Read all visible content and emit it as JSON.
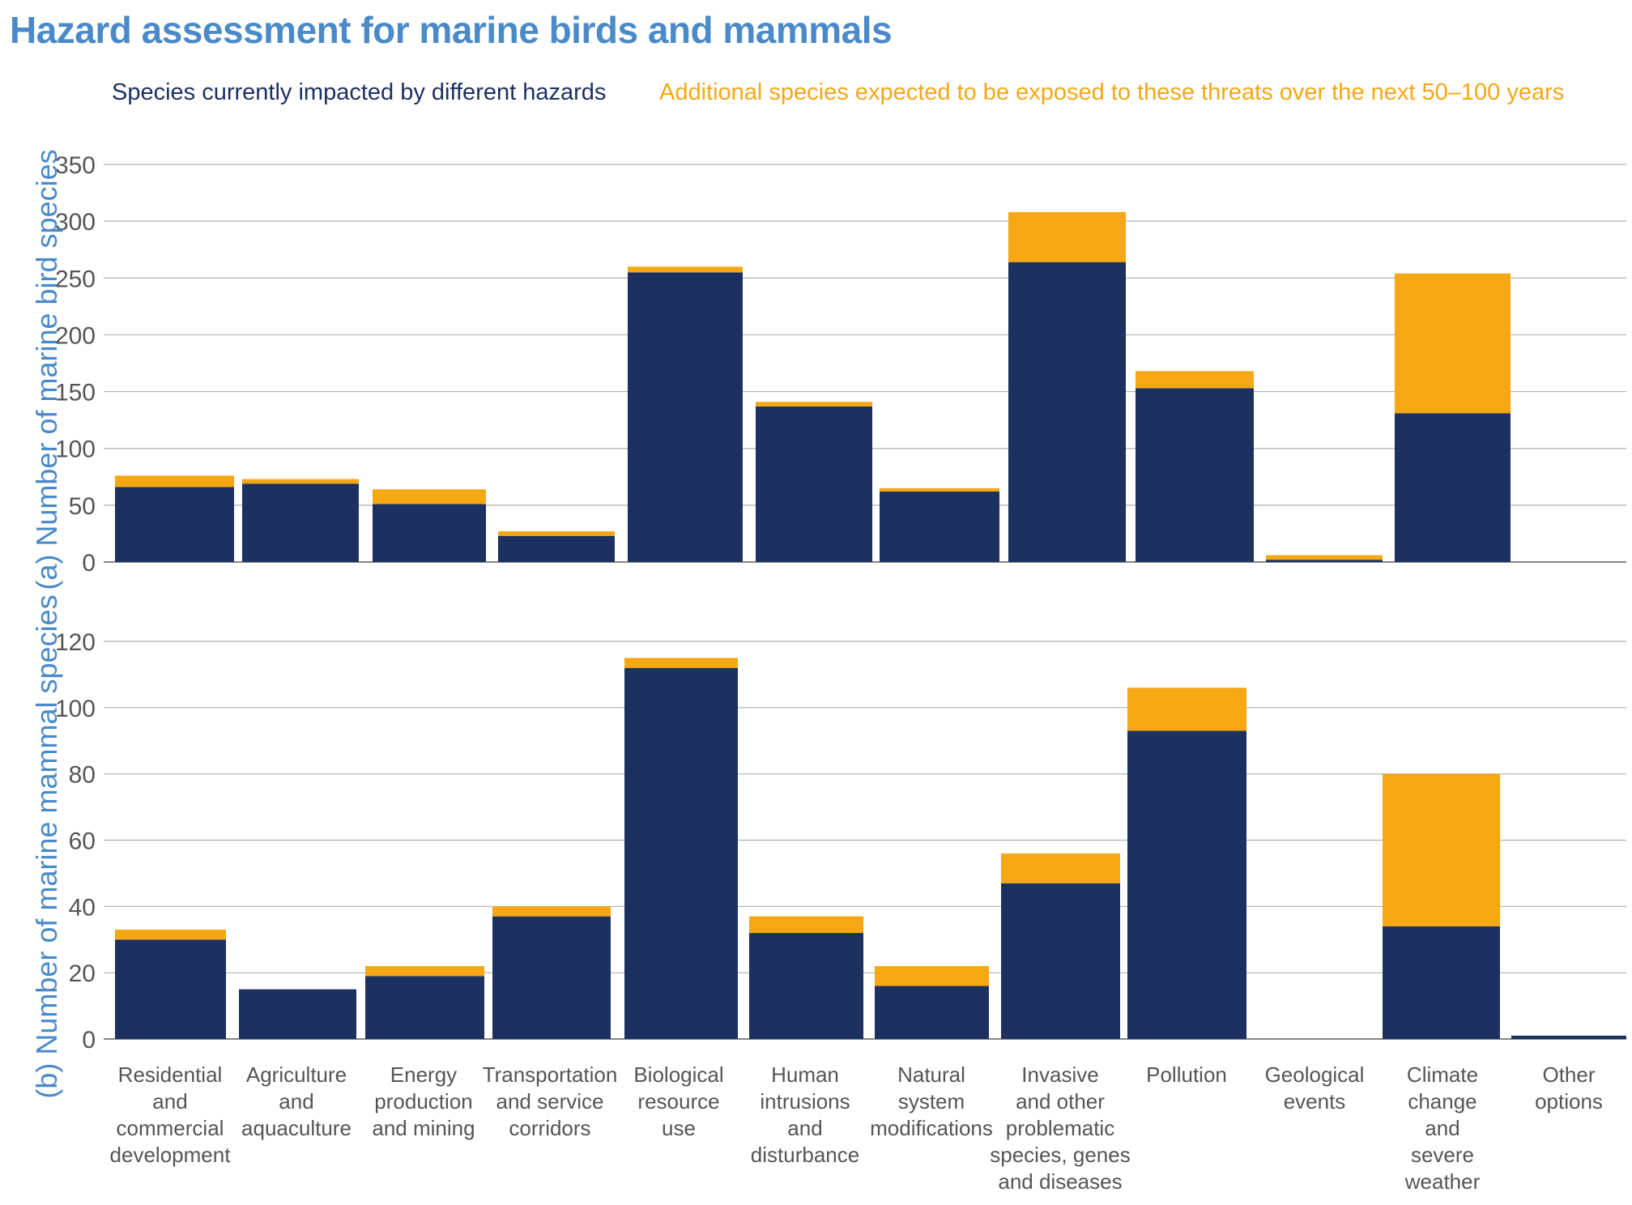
{
  "title": "Hazard assessment for marine birds and mammals",
  "legend": {
    "current": "Species currently impacted by different hazards",
    "additional": "Additional species expected to be exposed to these threats over the next 50–100 years"
  },
  "colors": {
    "current": "#1d3160",
    "additional": "#f5a714",
    "title": "#4a8ac9",
    "grid": "#b0b0b0",
    "axis_text": "#555555"
  },
  "chart_data": [
    {
      "type": "bar",
      "stacked": true,
      "ylabel": "(a) Number of marine bird species",
      "ylim": [
        0,
        350
      ],
      "yticks": [
        0,
        50,
        100,
        150,
        200,
        250,
        300,
        350
      ],
      "grid": true,
      "categories": [
        "Residential and commercial development",
        "Agriculture and aquaculture",
        "Energy production and mining",
        "Transportation and service corridors",
        "Biological resource use",
        "Human intrusions and disturbance",
        "Natural system modifications",
        "Invasive and other problematic species, genes and diseases",
        "Pollution",
        "Geological events",
        "Climate change and severe weather",
        "Other options"
      ],
      "series": [
        {
          "name": "Species currently impacted by different hazards",
          "values": [
            66,
            69,
            51,
            23,
            255,
            137,
            62,
            264,
            153,
            2,
            131,
            0
          ]
        },
        {
          "name": "Additional species expected to be exposed to these threats over the next 50–100 years",
          "values": [
            10,
            4,
            13,
            4,
            5,
            4,
            3,
            44,
            15,
            4,
            123,
            0
          ]
        }
      ]
    },
    {
      "type": "bar",
      "stacked": true,
      "ylabel": "(b) Number of marine mammal species",
      "ylim": [
        0,
        120
      ],
      "yticks": [
        0,
        20,
        40,
        60,
        80,
        100,
        120
      ],
      "grid": true,
      "categories": [
        "Residential and commercial development",
        "Agriculture and aquaculture",
        "Energy production and mining",
        "Transportation and service corridors",
        "Biological resource use",
        "Human intrusions and disturbance",
        "Natural system modifications",
        "Invasive and other problematic species, genes and diseases",
        "Pollution",
        "Geological events",
        "Climate change and severe weather",
        "Other options"
      ],
      "series": [
        {
          "name": "Species currently impacted by different hazards",
          "values": [
            30,
            15,
            19,
            37,
            112,
            32,
            16,
            47,
            93,
            0,
            34,
            1
          ]
        },
        {
          "name": "Additional species expected to be exposed to these threats over the next 50–100 years",
          "values": [
            3,
            0,
            3,
            3,
            3,
            5,
            6,
            9,
            13,
            0,
            46,
            0
          ]
        }
      ]
    }
  ],
  "xlabels": [
    [
      "Residential",
      "and",
      "commercial",
      "development"
    ],
    [
      "Agriculture",
      "and",
      "aquaculture"
    ],
    [
      "Energy",
      "production",
      "and mining"
    ],
    [
      "Transportation",
      "and service",
      "corridors"
    ],
    [
      "Biological",
      "resource",
      "use"
    ],
    [
      "Human",
      "intrusions",
      "and",
      "disturbance"
    ],
    [
      "Natural",
      "system",
      "modifications"
    ],
    [
      "Invasive",
      "and other",
      "problematic",
      "species, genes",
      "and diseases"
    ],
    [
      "Pollution"
    ],
    [
      "Geological",
      "events"
    ],
    [
      "Climate",
      "change",
      "and",
      "severe",
      "weather"
    ],
    [
      "Other",
      "options"
    ]
  ]
}
